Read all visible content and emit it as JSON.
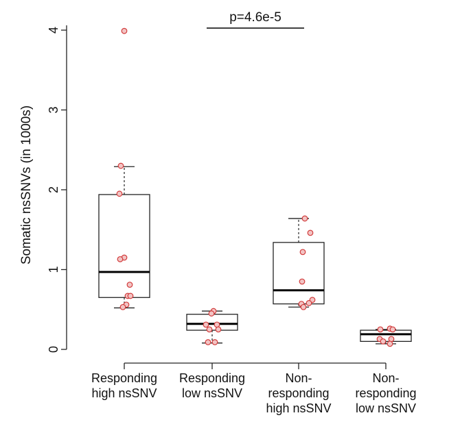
{
  "chart_data": {
    "type": "boxplot",
    "title": "",
    "xlabel": "",
    "ylabel": "Somatic  nsSNVs (in 1000s)",
    "ylim": [
      0,
      4
    ],
    "yticks": [
      0,
      1,
      2,
      3,
      4
    ],
    "ytick_labels": [
      "0",
      "1",
      "2",
      "3",
      "4"
    ],
    "categories": [
      [
        "Responding",
        "high nsSNV"
      ],
      [
        "Responding",
        "low nsSNV"
      ],
      [
        "Non-",
        "responding",
        "high nsSNV"
      ],
      [
        "Non-",
        "responding",
        "low nsSNV"
      ]
    ],
    "boxes": [
      {
        "q1": 0.65,
        "median": 0.97,
        "q3": 1.94,
        "whisker_low": 0.52,
        "whisker_high": 2.29
      },
      {
        "q1": 0.24,
        "median": 0.32,
        "q3": 0.44,
        "whisker_low": 0.08,
        "whisker_high": 0.48
      },
      {
        "q1": 0.57,
        "median": 0.74,
        "q3": 1.34,
        "whisker_low": 0.53,
        "whisker_high": 1.64
      },
      {
        "q1": 0.1,
        "median": 0.19,
        "q3": 0.24,
        "whisker_low": 0.07,
        "whisker_high": 0.25
      }
    ],
    "points": [
      [
        [
          0.0,
          3.99
        ],
        [
          -0.05,
          2.3
        ],
        [
          -0.07,
          1.95
        ],
        [
          0.0,
          1.15
        ],
        [
          -0.06,
          1.13
        ],
        [
          0.08,
          0.81
        ],
        [
          0.05,
          0.67
        ],
        [
          0.09,
          0.67
        ],
        [
          0.03,
          0.56
        ],
        [
          -0.02,
          0.53
        ]
      ],
      [
        [
          0.02,
          0.48
        ],
        [
          -0.01,
          0.45
        ],
        [
          -0.09,
          0.31
        ],
        [
          0.07,
          0.31
        ],
        [
          -0.04,
          0.25
        ],
        [
          0.09,
          0.25
        ],
        [
          -0.06,
          0.09
        ],
        [
          0.04,
          0.09
        ]
      ],
      [
        [
          0.09,
          1.64
        ],
        [
          0.17,
          1.46
        ],
        [
          0.06,
          1.22
        ],
        [
          0.05,
          0.85
        ],
        [
          0.2,
          0.62
        ],
        [
          0.15,
          0.58
        ],
        [
          0.04,
          0.57
        ],
        [
          0.07,
          0.53
        ]
      ],
      [
        [
          -0.08,
          0.25
        ],
        [
          0.06,
          0.26
        ],
        [
          0.1,
          0.25
        ],
        [
          -0.09,
          0.13
        ],
        [
          0.08,
          0.13
        ],
        [
          -0.04,
          0.1
        ],
        [
          0.06,
          0.07
        ]
      ]
    ],
    "annotation": {
      "label": "p=4.6e-5",
      "from_group": 1,
      "to_group": 2,
      "y": 4.07
    },
    "colors": {
      "point_fill": "#f2c4c4",
      "point_stroke": "#d23a3a",
      "box_fill": "#ffffff",
      "line": "#222222"
    }
  }
}
